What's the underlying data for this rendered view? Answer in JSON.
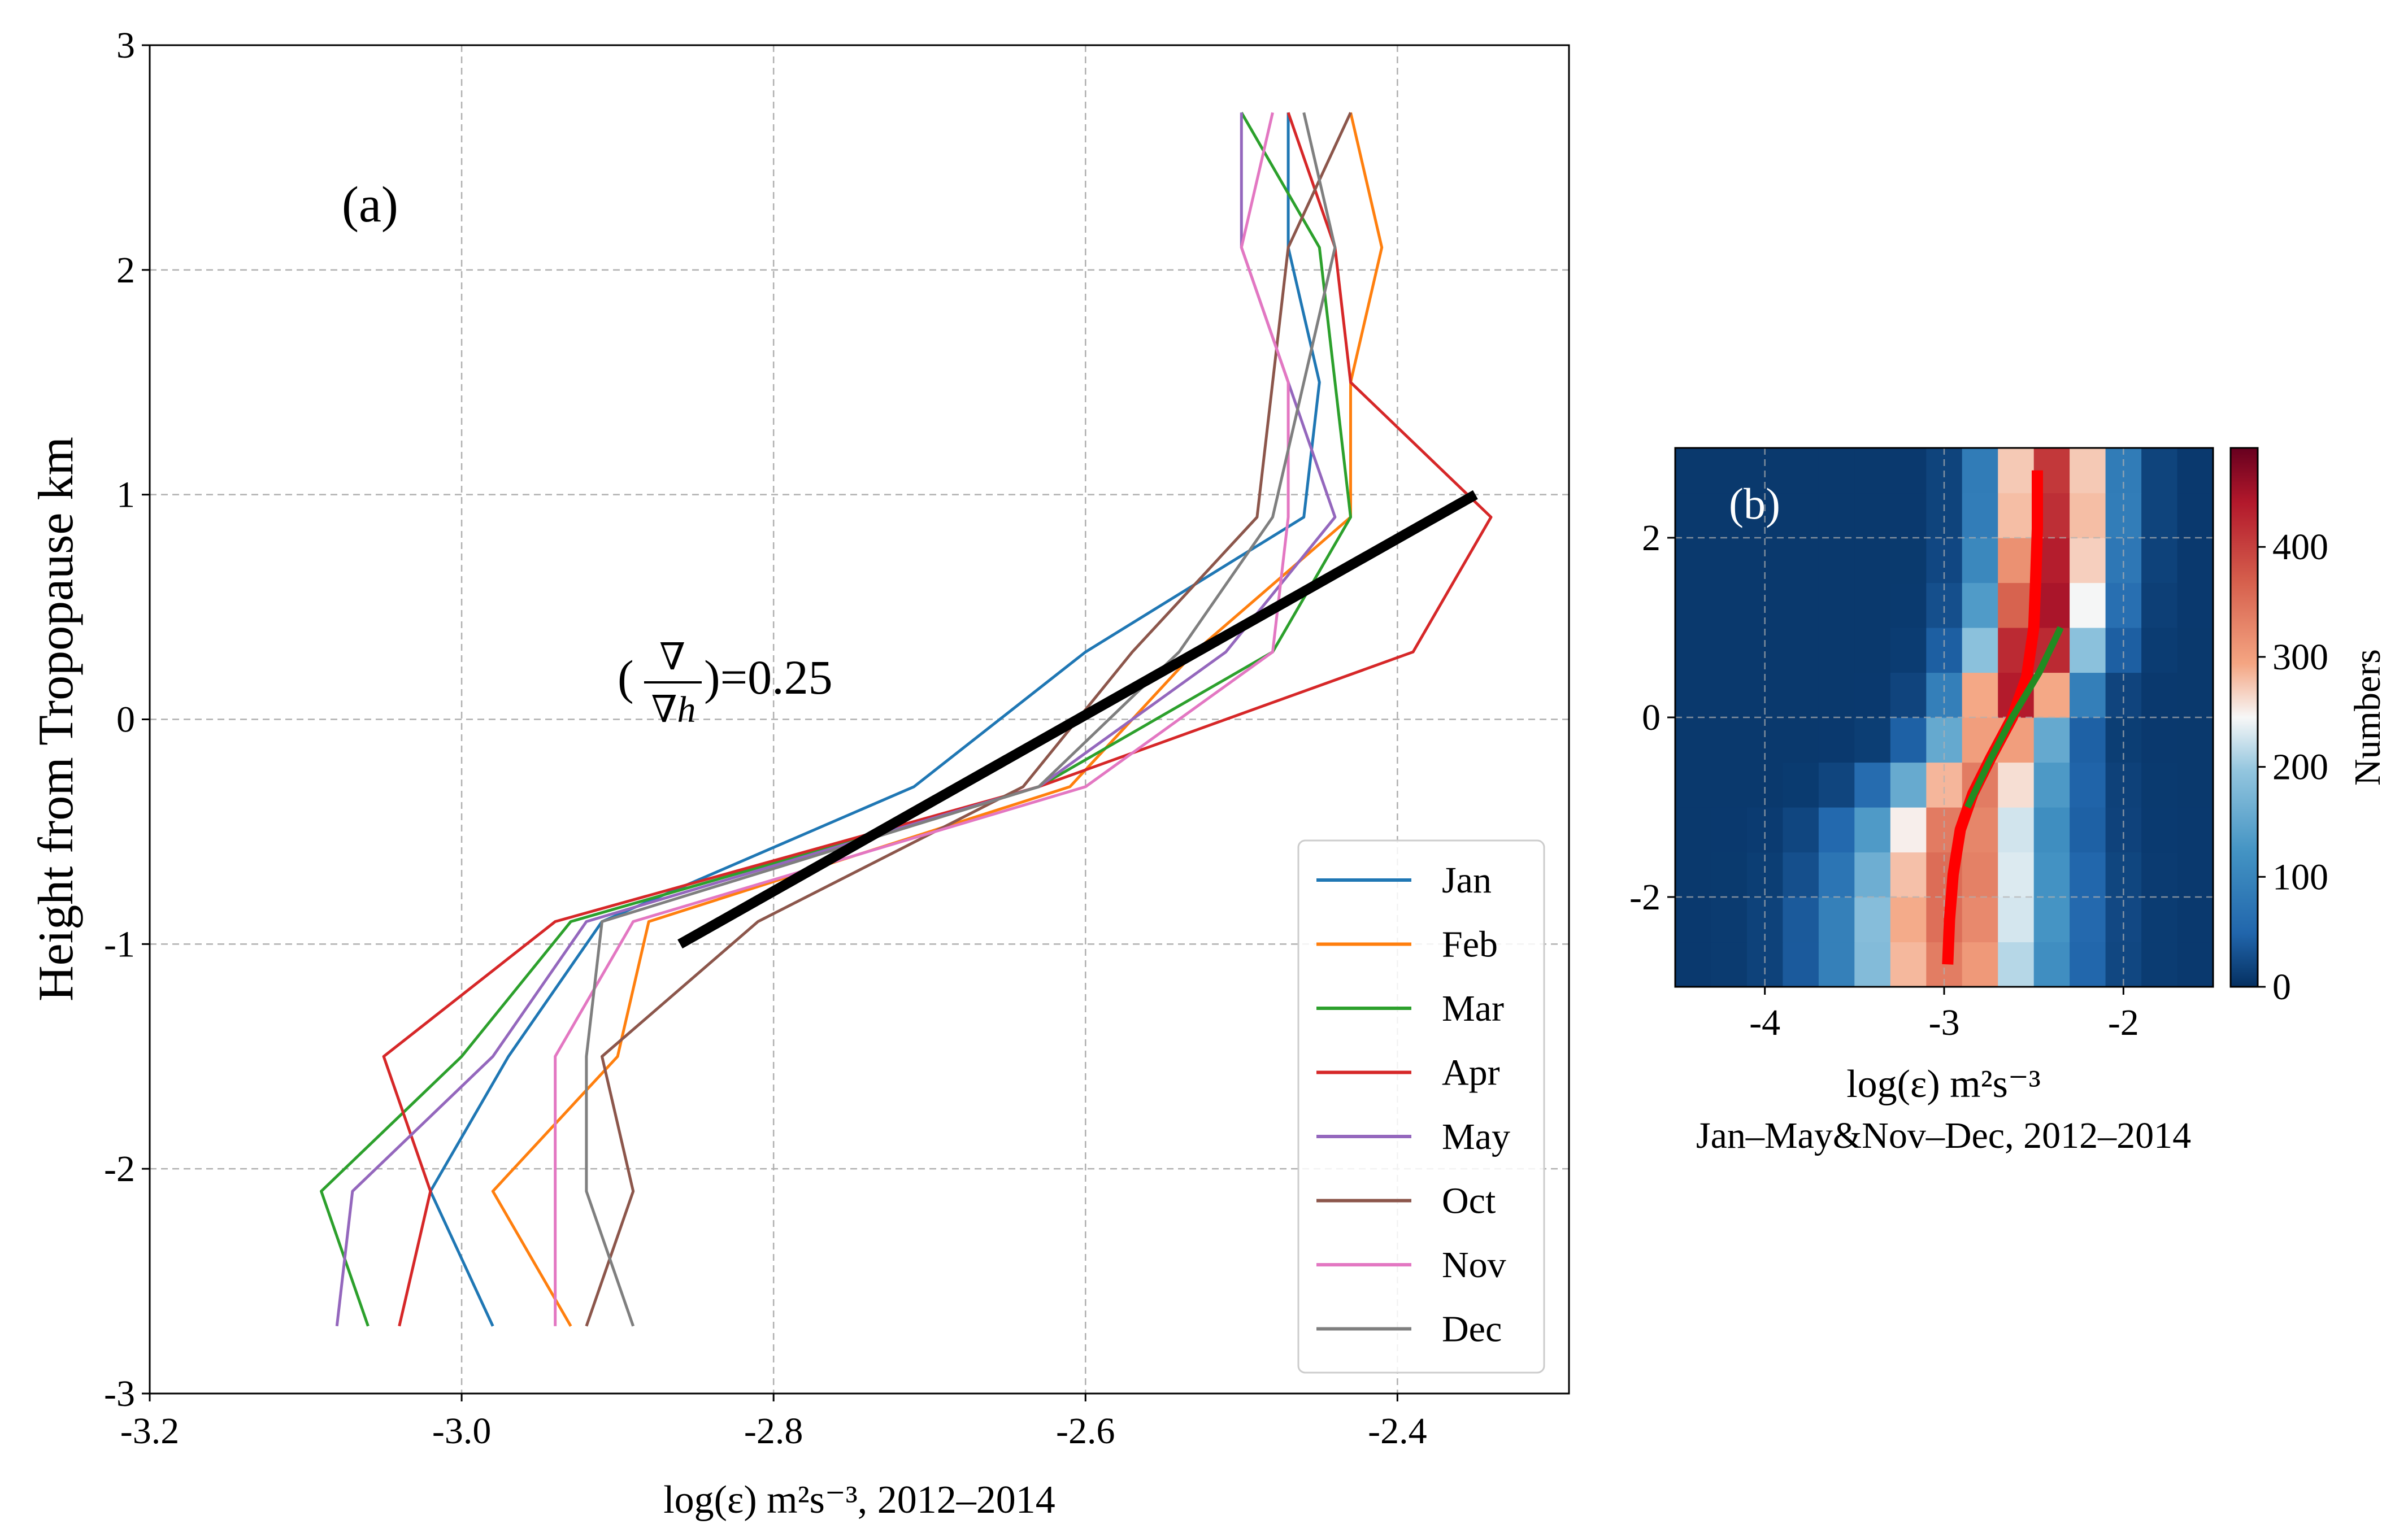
{
  "chart_data": [
    {
      "panel": "a",
      "type": "line",
      "panel_label": "(a)",
      "xlabel_math": "log(ε)",
      "xlabel_units": " m²s⁻³, 2012–2014",
      "ylabel": "Height from Tropopause km",
      "xlim": [
        -3.2,
        -2.29
      ],
      "ylim": [
        -3,
        3
      ],
      "xticks": [
        "-3.2",
        "-3.0",
        "-2.8",
        "-2.6",
        "-2.4"
      ],
      "xtick_values": [
        -3.2,
        -3.0,
        -2.8,
        -2.6,
        -2.4
      ],
      "yticks": [
        "-3",
        "-2",
        "-1",
        "0",
        "1",
        "2",
        "3"
      ],
      "ytick_values": [
        -3,
        -2,
        -1,
        0,
        1,
        2,
        3
      ],
      "grid": true,
      "legend_position": "bottom-right",
      "annotation_numerator": "∇",
      "annotation_denominator": "∇h",
      "annotation_value": ")=0.25",
      "annotation_open": "(",
      "heights": [
        -2.7,
        -2.1,
        -1.5,
        -0.9,
        -0.3,
        0.3,
        0.9,
        1.5,
        2.1,
        2.7
      ],
      "series": [
        {
          "name": "Jan",
          "color": "#1f77b4",
          "values": [
            -2.98,
            -3.02,
            -2.97,
            -2.91,
            -2.71,
            -2.6,
            -2.46,
            -2.45,
            -2.47,
            -2.47
          ]
        },
        {
          "name": "Feb",
          "color": "#ff7f0e",
          "values": [
            -2.93,
            -2.98,
            -2.9,
            -2.88,
            -2.61,
            -2.53,
            -2.43,
            -2.43,
            -2.41,
            -2.43
          ]
        },
        {
          "name": "Mar",
          "color": "#2ca02c",
          "values": [
            -3.06,
            -3.09,
            -3.0,
            -2.93,
            -2.63,
            -2.48,
            -2.43,
            -2.44,
            -2.45,
            -2.5
          ]
        },
        {
          "name": "Apr",
          "color": "#d62728",
          "values": [
            -3.04,
            -3.02,
            -3.05,
            -2.94,
            -2.63,
            -2.39,
            -2.34,
            -2.43,
            -2.44,
            -2.47
          ]
        },
        {
          "name": "May",
          "color": "#9467bd",
          "values": [
            -3.08,
            -3.07,
            -2.98,
            -2.92,
            -2.63,
            -2.51,
            -2.44,
            -2.47,
            -2.5,
            -2.5
          ]
        },
        {
          "name": "Oct",
          "color": "#8c564b",
          "values": [
            -2.92,
            -2.89,
            -2.91,
            -2.81,
            -2.64,
            -2.57,
            -2.49,
            -2.48,
            -2.47,
            -2.43
          ]
        },
        {
          "name": "Nov",
          "color": "#e377c2",
          "values": [
            -2.94,
            -2.94,
            -2.94,
            -2.89,
            -2.6,
            -2.48,
            -2.47,
            -2.47,
            -2.5,
            -2.48
          ]
        },
        {
          "name": "Dec",
          "color": "#7f7f7f",
          "values": [
            -2.89,
            -2.92,
            -2.92,
            -2.91,
            -2.63,
            -2.54,
            -2.48,
            -2.46,
            -2.44,
            -2.46
          ]
        }
      ],
      "fit_line": {
        "color": "#000000",
        "x": [
          -2.86,
          -2.35
        ],
        "y": [
          -1.0,
          1.0
        ]
      }
    },
    {
      "panel": "b",
      "type": "heatmap",
      "panel_label": "(b)",
      "xlabel_math": "log(ε)",
      "xlabel_units": " m²s⁻³",
      "xlabel_line2": "Jan–May&Nov–Dec, 2012–2014",
      "xlim": [
        -4.5,
        -1.5
      ],
      "ylim": [
        -3,
        3
      ],
      "xticks": [
        "-4",
        "-3",
        "-2"
      ],
      "xtick_values": [
        -4,
        -3,
        -2
      ],
      "yticks": [
        "-2",
        "0",
        "2"
      ],
      "ytick_values": [
        -2,
        0,
        2
      ],
      "colorbar_label": "Numbers",
      "colorbar_ticks": [
        "0",
        "100",
        "200",
        "300",
        "400"
      ],
      "colorbar_tick_values": [
        0,
        100,
        200,
        300,
        400
      ],
      "colorbar_range": [
        0,
        490
      ],
      "grid_x_edges": [
        -4.5,
        -1.5
      ],
      "grid_y_edges": [
        -3,
        3
      ],
      "nx": 15,
      "ny": 12,
      "peak_profile": {
        "heights": [
          -2.75,
          -2.25,
          -1.75,
          -1.25,
          -0.75,
          -0.25,
          0.25,
          0.75,
          1.25,
          1.75,
          2.25,
          2.75
        ],
        "center_x": [
          -2.97,
          -2.96,
          -2.94,
          -2.92,
          -2.82,
          -2.7,
          -2.6,
          -2.5,
          -2.45,
          -2.42,
          -2.4,
          -2.4
        ],
        "width_x": [
          0.38,
          0.38,
          0.36,
          0.34,
          0.3,
          0.24,
          0.22,
          0.22,
          0.22,
          0.22,
          0.22,
          0.22
        ],
        "peak_count": [
          330,
          345,
          350,
          340,
          330,
          320,
          430,
          460,
          450,
          430,
          410,
          400
        ]
      },
      "red_line": {
        "color": "#ff0000",
        "x": [
          -2.98,
          -2.97,
          -2.95,
          -2.91,
          -2.84,
          -2.74,
          -2.62,
          -2.54,
          -2.5,
          -2.49,
          -2.48,
          -2.48
        ],
        "y": [
          -2.75,
          -2.25,
          -1.75,
          -1.25,
          -0.85,
          -0.45,
          0.0,
          0.45,
          1.0,
          1.5,
          2.1,
          2.75
        ]
      },
      "green_line": {
        "color": "#228b22",
        "x": [
          -2.87,
          -2.75,
          -2.62,
          -2.47,
          -2.35
        ],
        "y": [
          -1.0,
          -0.5,
          0.0,
          0.5,
          1.0
        ]
      }
    }
  ]
}
